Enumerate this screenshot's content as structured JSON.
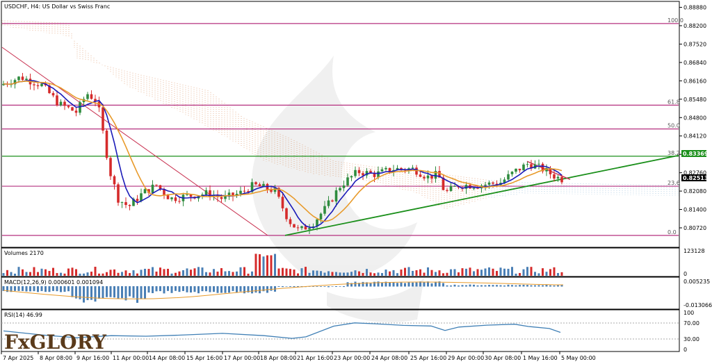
{
  "main_panel": {
    "title": "USDCHF, H4:  US Dollar vs Swiss Franc",
    "price_axis": [
      "0.88880",
      "0.88200",
      "0.87520",
      "0.86840",
      "0.86160",
      "0.85480",
      "0.84800",
      "0.84120",
      "0.83440",
      "0.82760",
      "0.82080",
      "0.81400",
      "0.80720"
    ],
    "current_price": "0.82513",
    "level_tag": "0.83369",
    "fib_labels": [
      "100.0",
      "61.8",
      "50.0",
      "38.2",
      "23.6",
      "0.0"
    ]
  },
  "volume_panel": {
    "label": "Volumes 2170",
    "axis_top": "123128",
    "axis_bottom": "0"
  },
  "macd_panel": {
    "label": "MACD(12,26,9) 0.000601 0.001094",
    "axis_top": "0.005235",
    "axis_bottom": "-0.013066"
  },
  "rsi_panel": {
    "label": "RSI(14) 46.99",
    "axis_top": "100",
    "axis_70": "70.00",
    "axis_30": "30.00",
    "axis_bottom": "0"
  },
  "time_axis": [
    "7 Apr 2025",
    "8 Apr 08:00",
    "9 Apr 16:00",
    "11 Apr 00:00",
    "14 Apr 08:00",
    "15 Apr 16:00",
    "17 Apr 00:00",
    "18 Apr 08:00",
    "21 Apr 16:00",
    "23 Apr 00:00",
    "24 Apr 08:00",
    "25 Apr 16:00",
    "29 Apr 00:00",
    "30 Apr 08:00",
    "1 May 16:00",
    "5 May 00:00"
  ],
  "logo": "FxGLORY",
  "colors": {
    "bull": "#2e8b3e",
    "bear": "#d52b2b",
    "fast_ma": "#1a1ab8",
    "slow_ma": "#e89a2a",
    "fib": "#b5307f",
    "support": "#1a8f1a",
    "downtrend": "#c8304f",
    "cloud": "#cf6a2a",
    "volume_bull": "#4a7fb5",
    "volume_bear": "#d52b2b",
    "rsi": "#3f7fb5"
  },
  "chart_data": {
    "type": "line",
    "title": "USDCHF, H4:  US Dollar vs Swiss Franc",
    "xlabel": "",
    "ylabel": "",
    "ylim": [
      0.8,
      0.891
    ],
    "x": [
      "7 Apr 2025",
      "8 Apr 08:00",
      "9 Apr 16:00",
      "11 Apr 00:00",
      "14 Apr 08:00",
      "15 Apr 16:00",
      "17 Apr 00:00",
      "18 Apr 08:00",
      "21 Apr 16:00",
      "23 Apr 00:00",
      "24 Apr 08:00",
      "25 Apr 16:00",
      "29 Apr 00:00",
      "30 Apr 08:00",
      "1 May 16:00",
      "5 May 00:00"
    ],
    "series": [
      {
        "name": "",
        "values": [
          0.862,
          0.858,
          0.851,
          0.822,
          0.82,
          0.822,
          0.823,
          0.818,
          0.808,
          0.817,
          0.828,
          0.829,
          0.823,
          0.824,
          0.829,
          0.826
        ]
      }
    ],
    "fib_levels": [
      {
        "label": "100.0",
        "price": 0.8828
      },
      {
        "label": "61.8",
        "price": 0.8526
      },
      {
        "label": "50.0",
        "price": 0.8438
      },
      {
        "label": "38.2",
        "price": 0.8337
      },
      {
        "label": "23.6",
        "price": 0.8226
      },
      {
        "label": "0.0",
        "price": 0.8044
      }
    ],
    "rsi_last": 46.99,
    "macd": [
      0.000601,
      0.001094
    ],
    "volume_last": 2170,
    "grid": false
  }
}
